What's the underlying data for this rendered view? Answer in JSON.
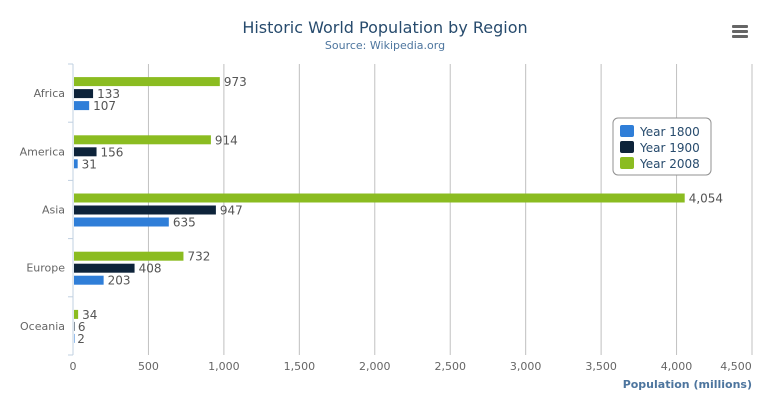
{
  "chart_data": {
    "type": "bar",
    "orientation": "horizontal",
    "title": "Historic World Population by Region",
    "subtitle": "Source: Wikipedia.org",
    "categories": [
      "Africa",
      "America",
      "Asia",
      "Europe",
      "Oceania"
    ],
    "series": [
      {
        "name": "Year 1800",
        "color": "#2f7ed8",
        "values": [
          107,
          31,
          635,
          203,
          2
        ]
      },
      {
        "name": "Year 1900",
        "color": "#0d233a",
        "values": [
          133,
          156,
          947,
          408,
          6
        ]
      },
      {
        "name": "Year 2008",
        "color": "#8bbc21",
        "values": [
          973,
          914,
          4054,
          732,
          34
        ]
      }
    ],
    "data_labels": [
      [
        "107",
        "31",
        "635",
        "203",
        "2"
      ],
      [
        "133",
        "156",
        "947",
        "408",
        "6"
      ],
      [
        "973",
        "914",
        "4,054",
        "732",
        "34"
      ]
    ],
    "xlabel": "",
    "ylabel": "Population (millions)",
    "ylim": [
      0,
      4500
    ],
    "ticks": [
      "0",
      "500",
      "1,000",
      "1,500",
      "2,000",
      "2,500",
      "3,000",
      "3,500",
      "4,000",
      "4,500"
    ],
    "grid": true,
    "legend_placement": "top-right"
  },
  "menu_icon": "hamburger-menu-icon"
}
